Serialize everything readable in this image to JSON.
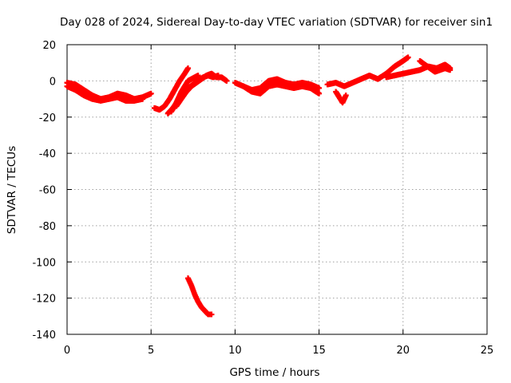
{
  "chart_data": {
    "type": "scatter",
    "title": "Day 028 of 2024, Sidereal Day-to-day VTEC variation (SDTVAR) for receiver sin1",
    "xlabel": "GPS time / hours",
    "ylabel": "SDTVAR / TECUs",
    "xlim": [
      0,
      25
    ],
    "ylim": [
      -140,
      20
    ],
    "xticks": [
      0,
      5,
      10,
      15,
      20,
      25
    ],
    "yticks": [
      20,
      0,
      -20,
      -40,
      -60,
      -80,
      -100,
      -120,
      -140
    ],
    "grid": true,
    "marker": "plus",
    "series": [
      {
        "name": "SDTVAR",
        "color": "#ff0000",
        "segments": [
          {
            "label": "early-band-upper",
            "x": [
              0.0,
              0.5,
              1.0,
              1.5,
              2.0,
              2.5,
              3.0,
              3.5,
              4.0,
              4.5,
              5.0
            ],
            "y": [
              -1,
              -2,
              -5,
              -8,
              -10,
              -9,
              -7,
              -8,
              -10,
              -9,
              -7
            ]
          },
          {
            "label": "early-band-lower",
            "x": [
              0.0,
              0.5,
              1.0,
              1.5,
              2.0,
              2.5,
              3.0,
              3.5,
              4.0,
              4.5
            ],
            "y": [
              -3,
              -5,
              -8,
              -10,
              -11,
              -10,
              -9,
              -11,
              -11,
              -10
            ]
          },
          {
            "label": "rise-1",
            "x": [
              5.2,
              5.5,
              5.8,
              6.1,
              6.4,
              6.7,
              7.0,
              7.2
            ],
            "y": [
              -15,
              -16,
              -14,
              -10,
              -5,
              0,
              4,
              7
            ]
          },
          {
            "label": "rise-2",
            "x": [
              6.2,
              6.4,
              6.6,
              6.8,
              7.0,
              7.2,
              7.4,
              7.6,
              7.8
            ],
            "y": [
              -17,
              -14,
              -10,
              -6,
              -3,
              0,
              1,
              2,
              3
            ]
          },
          {
            "label": "rise-3",
            "x": [
              6.0,
              6.3,
              6.6,
              6.9,
              7.2,
              7.5,
              7.8,
              8.1,
              8.4,
              8.7,
              9.0
            ],
            "y": [
              -18,
              -15,
              -11,
              -7,
              -4,
              -2,
              0,
              2,
              3,
              2,
              3
            ]
          },
          {
            "label": "rise-4",
            "x": [
              6.5,
              6.8,
              7.1,
              7.4,
              7.7,
              8.0,
              8.3,
              8.6,
              8.9,
              9.2,
              9.5
            ],
            "y": [
              -14,
              -10,
              -6,
              -3,
              -1,
              1,
              3,
              4,
              2,
              2,
              0
            ]
          },
          {
            "label": "mid-band",
            "x": [
              10.0,
              10.5,
              11.0,
              11.5,
              12.0,
              12.5,
              13.0,
              13.5,
              14.0,
              14.5,
              15.0
            ],
            "y": [
              -1,
              -3,
              -5,
              -4,
              0,
              1,
              -1,
              -2,
              -1,
              -2,
              -4
            ]
          },
          {
            "label": "mid-band-lower",
            "x": [
              10.5,
              11.0,
              11.5,
              12.0,
              12.5,
              13.0,
              13.5,
              14.0,
              14.5,
              15.0
            ],
            "y": [
              -3,
              -6,
              -7,
              -3,
              -2,
              -3,
              -4,
              -3,
              -4,
              -7
            ]
          },
          {
            "label": "late-band",
            "x": [
              15.5,
              16.0,
              16.5,
              17.0,
              17.5,
              18.0,
              18.5,
              19.0,
              19.5,
              20.0,
              20.3
            ],
            "y": [
              -2,
              -1,
              -3,
              -1,
              1,
              3,
              1,
              4,
              8,
              11,
              13
            ]
          },
          {
            "label": "late-dip",
            "x": [
              16.0,
              16.2,
              16.4,
              16.6
            ],
            "y": [
              -6,
              -9,
              -12,
              -8
            ]
          },
          {
            "label": "late-band-2",
            "x": [
              19.0,
              19.5,
              20.0,
              20.5,
              21.0,
              21.5,
              22.0,
              22.5,
              22.8
            ],
            "y": [
              2,
              3,
              4,
              5,
              6,
              8,
              7,
              9,
              7
            ]
          },
          {
            "label": "late-band-3",
            "x": [
              21.0,
              21.3,
              21.6,
              21.9,
              22.2,
              22.5,
              22.8
            ],
            "y": [
              11,
              9,
              7,
              5,
              6,
              7,
              6
            ]
          },
          {
            "label": "outlier-track",
            "x": [
              7.2,
              7.4,
              7.6,
              7.8,
              8.0,
              8.2,
              8.4,
              8.6
            ],
            "y": [
              -109,
              -113,
              -118,
              -122,
              -125,
              -127,
              -129,
              -129
            ]
          }
        ]
      }
    ]
  }
}
